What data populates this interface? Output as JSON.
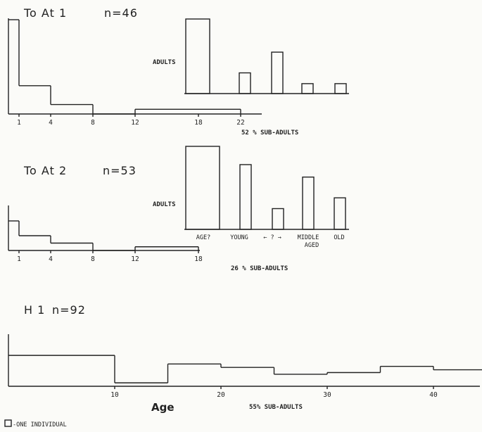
{
  "legend": {
    "label": "-ONE INDIVIDUAL"
  },
  "chart_data": [
    {
      "type": "bar",
      "title": "To At 1",
      "n_label": "n=46",
      "xlabel": "",
      "ylabel": "",
      "x_ticks": [
        1,
        4,
        8,
        12,
        18,
        22
      ],
      "bin_edges": [
        0,
        1,
        4,
        8,
        12,
        18,
        22
      ],
      "values": [
        10,
        3,
        1,
        0,
        0.5,
        0.5
      ],
      "ylim": [
        0,
        10
      ],
      "annotation": "52 % SUB-ADULTS"
    },
    {
      "type": "bar",
      "ylabel": "ADULTS",
      "categories": [
        "",
        "",
        "",
        "",
        ""
      ],
      "values": [
        9,
        2.5,
        5,
        1.2,
        1.2
      ],
      "ylim": [
        0,
        9
      ]
    },
    {
      "type": "bar",
      "title": "To At 2",
      "n_label": "n=53",
      "xlabel": "",
      "ylabel": "",
      "x_ticks": [
        1,
        4,
        8,
        12,
        18
      ],
      "bin_edges": [
        0,
        1,
        4,
        8,
        12,
        18
      ],
      "values": [
        4,
        2,
        1,
        0,
        0.5
      ],
      "ylim": [
        0,
        4
      ],
      "annotation": "26 % SUB-ADULTS"
    },
    {
      "type": "bar",
      "ylabel": "ADULTS",
      "category_labels": [
        "AGE?",
        "YOUNG",
        "← ? →",
        "MIDDLE",
        "AGED",
        "OLD"
      ],
      "values": [
        10,
        7.8,
        2.5,
        6.3,
        3.8
      ],
      "ylim": [
        0,
        10
      ]
    },
    {
      "type": "bar",
      "title": "H 1",
      "n_label": "n=92",
      "xlabel": "Age",
      "ylabel": "",
      "x_ticks": [
        10,
        20,
        30,
        40
      ],
      "bin_edges": [
        0,
        10,
        15,
        20,
        25,
        30,
        35,
        40,
        45
      ],
      "values": [
        9,
        1,
        6.5,
        5.5,
        3.5,
        4,
        5.8,
        4.8
      ],
      "ylim": [
        0,
        16
      ],
      "annotation": "55% SUB-ADULTS"
    }
  ]
}
